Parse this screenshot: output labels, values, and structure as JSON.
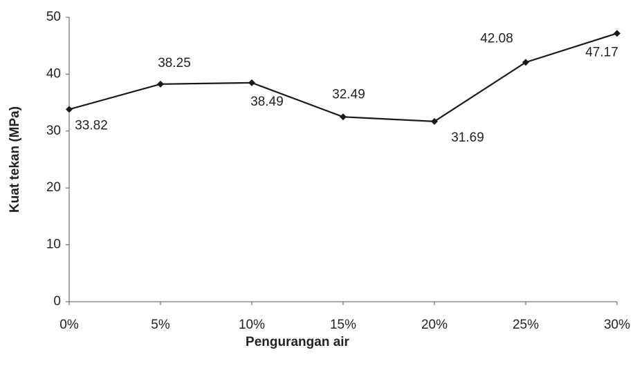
{
  "chart_data": {
    "type": "line",
    "x_label": "Pengurangan air",
    "y_label": "Kuat tekan (MPa)",
    "categories": [
      "0%",
      "5%",
      "10%",
      "15%",
      "20%",
      "25%",
      "30%"
    ],
    "series": [
      {
        "name": "Kuat tekan",
        "color": "#1a1a1a",
        "values": [
          33.82,
          38.25,
          38.49,
          32.49,
          31.69,
          42.08,
          47.17
        ]
      }
    ],
    "ylim": [
      0,
      50
    ],
    "yticks": [
      0,
      10,
      20,
      30,
      40,
      50
    ],
    "grid": false
  }
}
